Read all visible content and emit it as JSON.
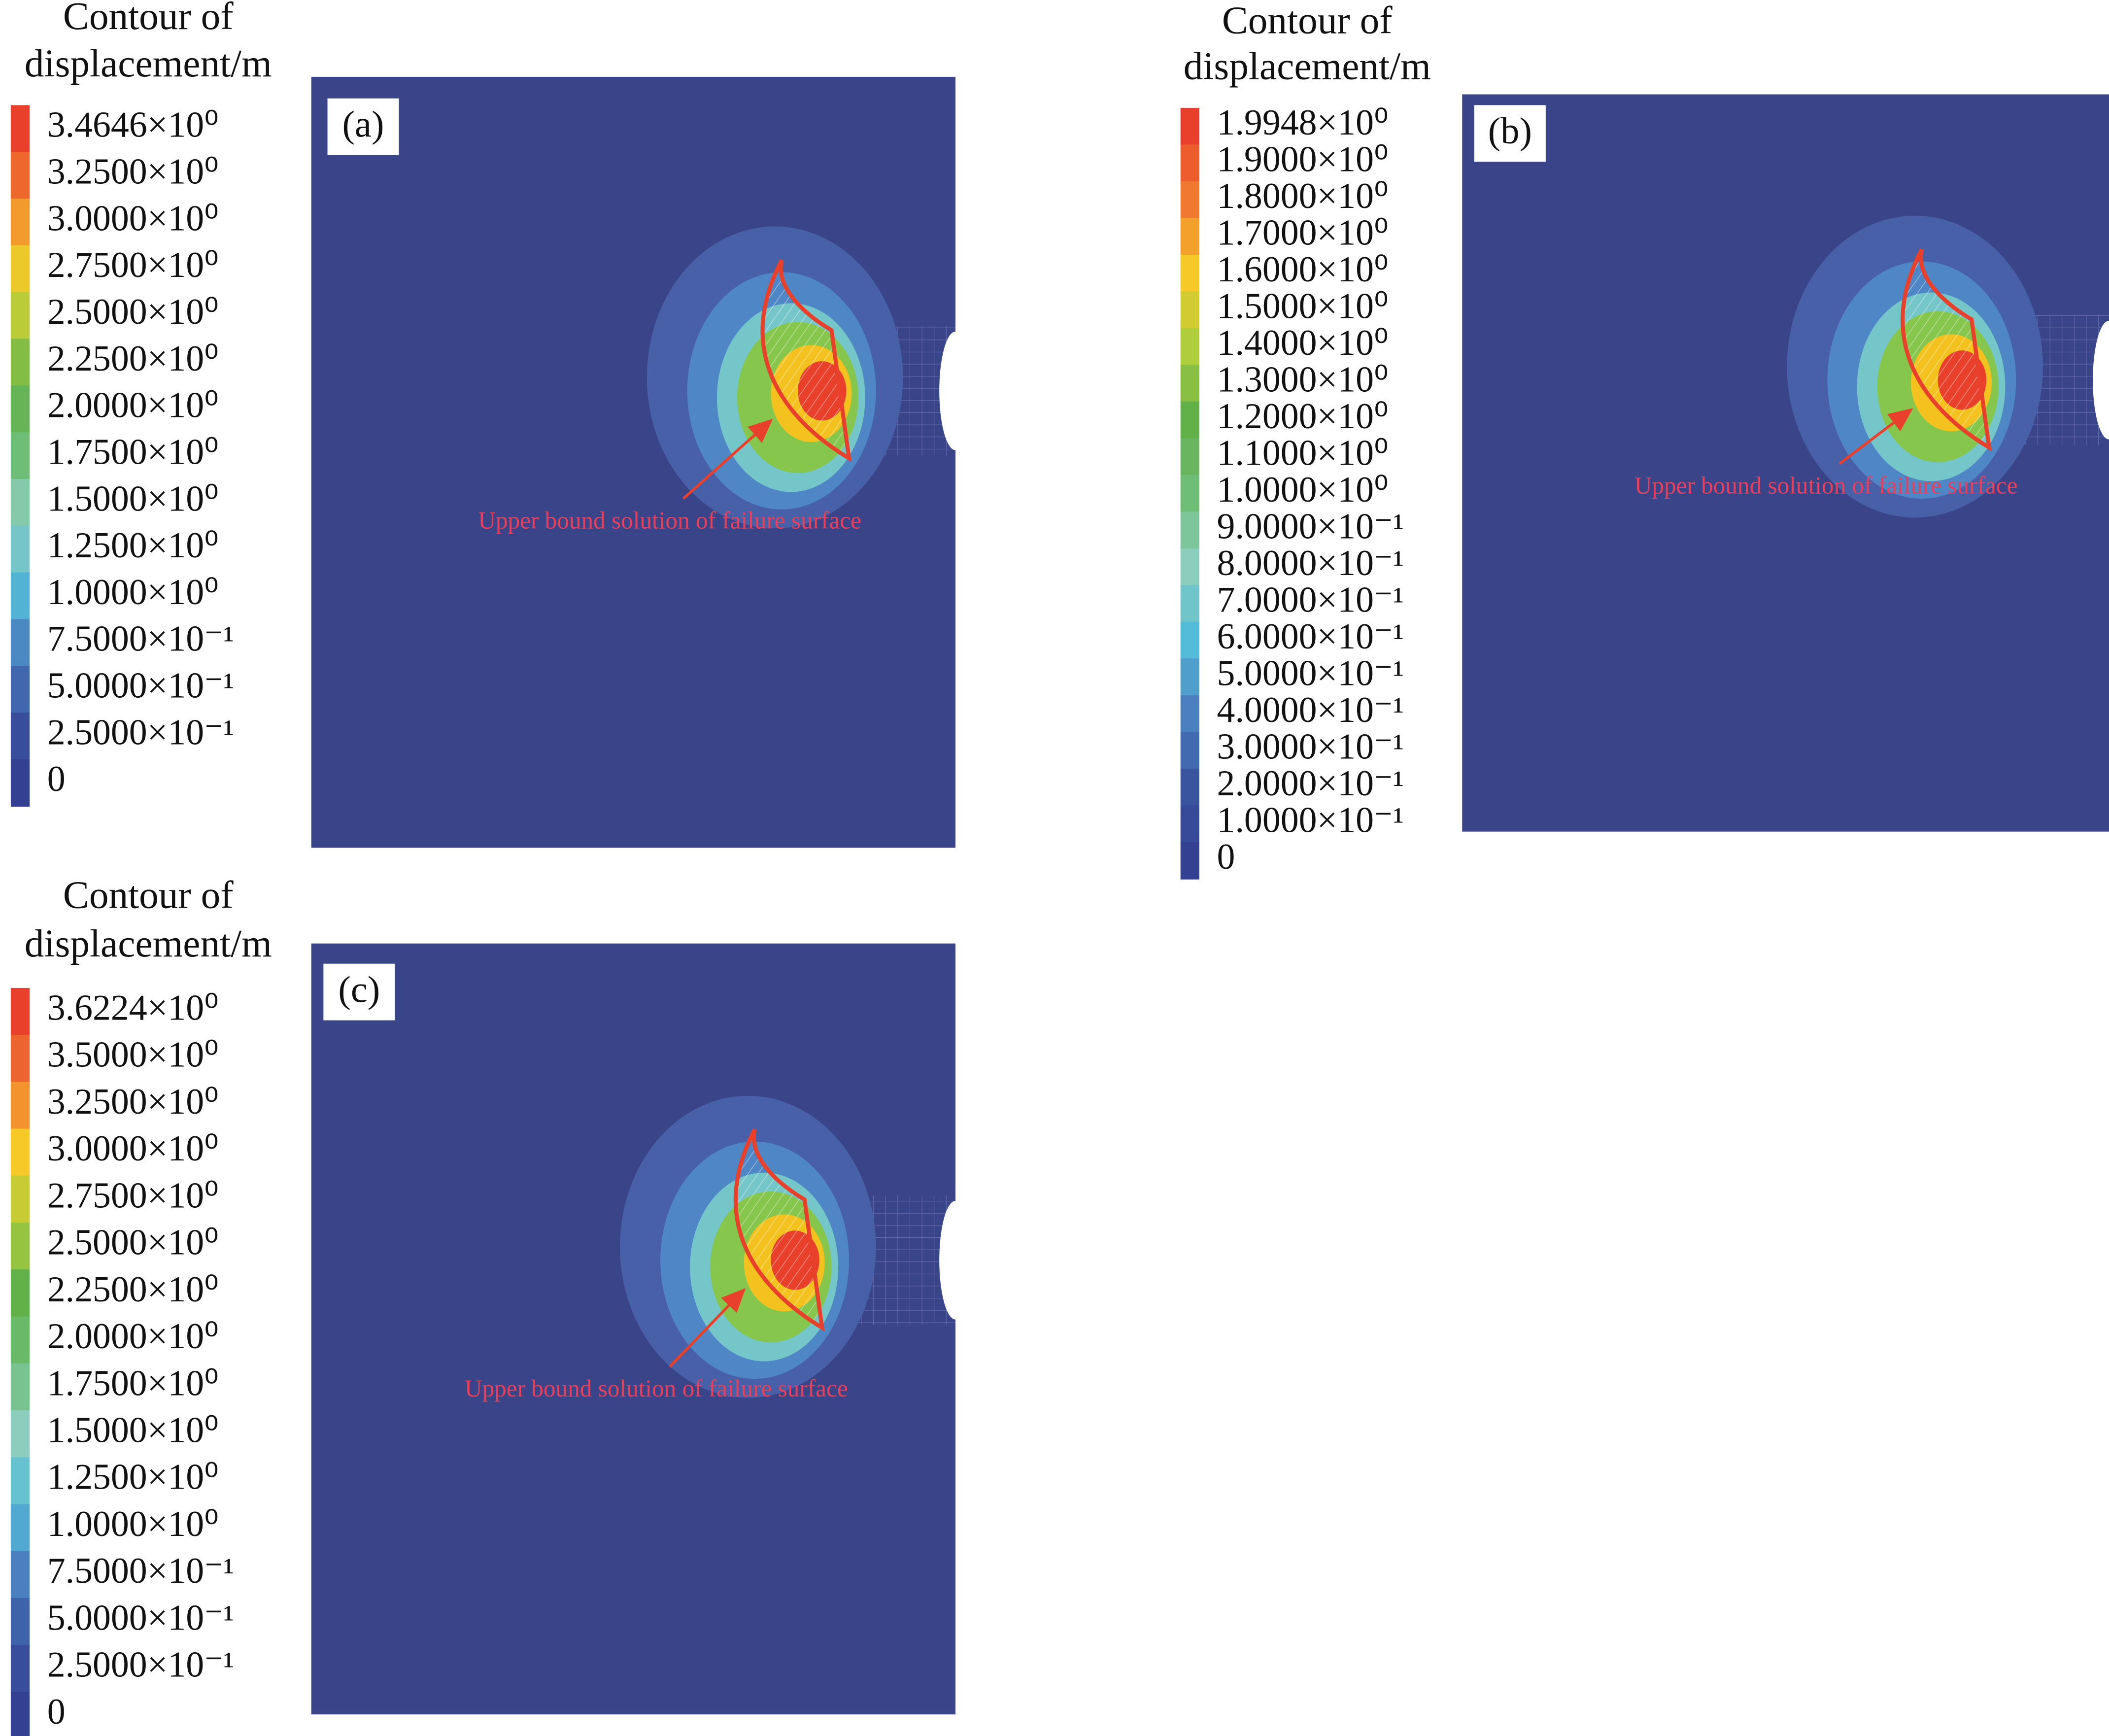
{
  "panels": [
    {
      "label": "(a)",
      "legend_title": [
        "Contour of",
        "displacement/m"
      ],
      "levels": [
        "3.4646×10⁰",
        "3.2500×10⁰",
        "3.0000×10⁰",
        "2.7500×10⁰",
        "2.5000×10⁰",
        "2.2500×10⁰",
        "2.0000×10⁰",
        "1.7500×10⁰",
        "1.5000×10⁰",
        "1.2500×10⁰",
        "1.0000×10⁰",
        "7.5000×10⁻¹",
        "5.0000×10⁻¹",
        "2.5000×10⁻¹",
        "0"
      ],
      "annotation": "Upper bound solution of failure surface"
    },
    {
      "label": "(b)",
      "legend_title": [
        "Contour of",
        "displacement/m"
      ],
      "levels": [
        "1.9948×10⁰",
        "1.9000×10⁰",
        "1.8000×10⁰",
        "1.7000×10⁰",
        "1.6000×10⁰",
        "1.5000×10⁰",
        "1.4000×10⁰",
        "1.3000×10⁰",
        "1.2000×10⁰",
        "1.1000×10⁰",
        "1.0000×10⁰",
        "9.0000×10⁻¹",
        "8.0000×10⁻¹",
        "7.0000×10⁻¹",
        "6.0000×10⁻¹",
        "5.0000×10⁻¹",
        "4.0000×10⁻¹",
        "3.0000×10⁻¹",
        "2.0000×10⁻¹",
        "1.0000×10⁻¹",
        "0"
      ],
      "annotation": "Upper bound solution of failure surface"
    },
    {
      "label": "(c)",
      "legend_title": [
        "Contour of",
        "displacement/m"
      ],
      "levels": [
        "3.6224×10⁰",
        "3.5000×10⁰",
        "3.2500×10⁰",
        "3.0000×10⁰",
        "2.7500×10⁰",
        "2.5000×10⁰",
        "2.2500×10⁰",
        "2.0000×10⁰",
        "1.7500×10⁰",
        "1.5000×10⁰",
        "1.2500×10⁰",
        "1.0000×10⁰",
        "7.5000×10⁻¹",
        "5.0000×10⁻¹",
        "2.5000×10⁻¹",
        "0"
      ],
      "annotation": "Upper bound solution of failure surface"
    }
  ]
}
